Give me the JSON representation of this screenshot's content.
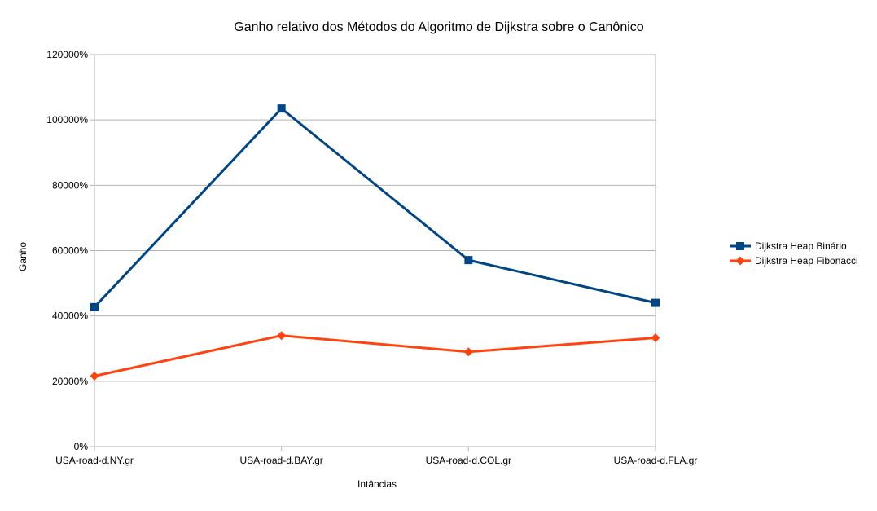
{
  "chart_data": {
    "type": "line",
    "title": "Ganho relativo dos Métodos do Algoritmo de Dijkstra sobre o Canônico",
    "xlabel": "Intâncias",
    "ylabel": "Ganho",
    "categories": [
      "USA-road-d.NY.gr",
      "USA-road-d.BAY.gr",
      "USA-road-d.COL.gr",
      "USA-road-d.FLA.gr"
    ],
    "ylim": [
      0,
      120000
    ],
    "y_ticks": [
      0,
      20000,
      40000,
      60000,
      80000,
      100000,
      120000
    ],
    "y_tick_labels": [
      "0%",
      "20000%",
      "40000%",
      "60000%",
      "80000%",
      "100000%",
      "120000%"
    ],
    "grid": true,
    "legend_position": "right",
    "series": [
      {
        "name": "Dijkstra Heap Binário",
        "values": [
          42700,
          103500,
          57100,
          44000
        ],
        "color": "#004586",
        "marker": "square"
      },
      {
        "name": "Dijkstra Heap Fibonacci",
        "values": [
          21600,
          34000,
          29000,
          33300
        ],
        "color": "#ff420e",
        "marker": "diamond"
      }
    ]
  }
}
